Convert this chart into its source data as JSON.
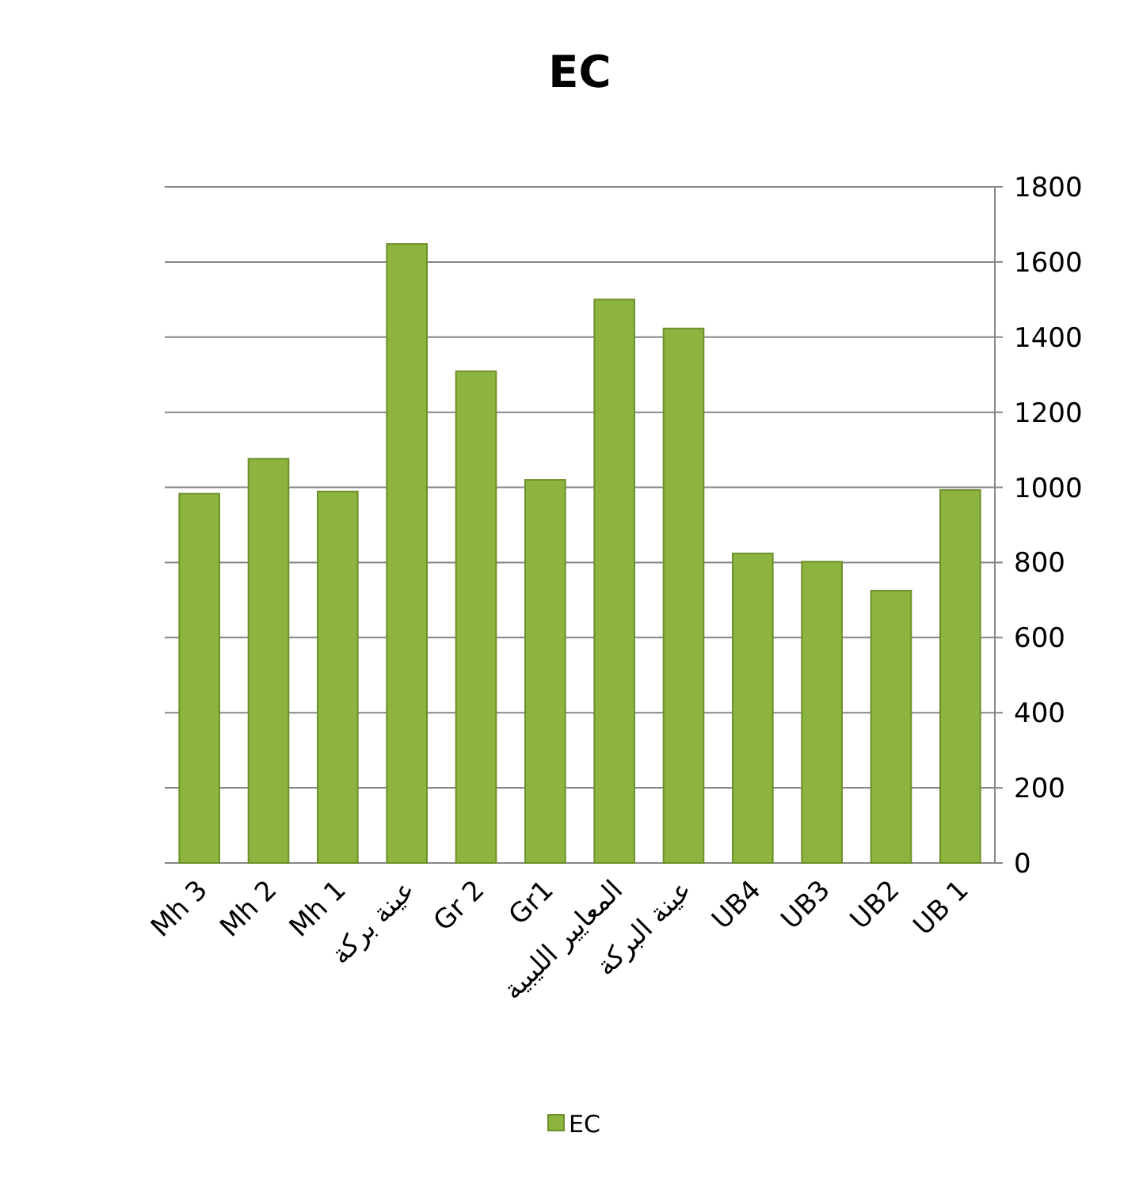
{
  "chart_data": {
    "type": "bar",
    "title": "EC",
    "categories": [
      "Mh 3",
      "Mh 2",
      "Mh 1",
      "عينة بركة",
      "Gr 2",
      "Gr1",
      "المعايير الليبية",
      "عينة البركة",
      "UB4",
      "UB3",
      "UB2",
      "UB 1"
    ],
    "series": [
      {
        "name": "EC",
        "color": "#8db43e",
        "values": [
          983,
          1076,
          989,
          1648,
          1309,
          1020,
          1500,
          1423,
          824,
          802,
          725,
          993
        ]
      }
    ],
    "ylim": [
      0,
      1800
    ],
    "yticks": [
      0,
      200,
      400,
      600,
      800,
      1000,
      1200,
      1400,
      1600,
      1800
    ],
    "grid": "y",
    "legend": "bottom"
  }
}
